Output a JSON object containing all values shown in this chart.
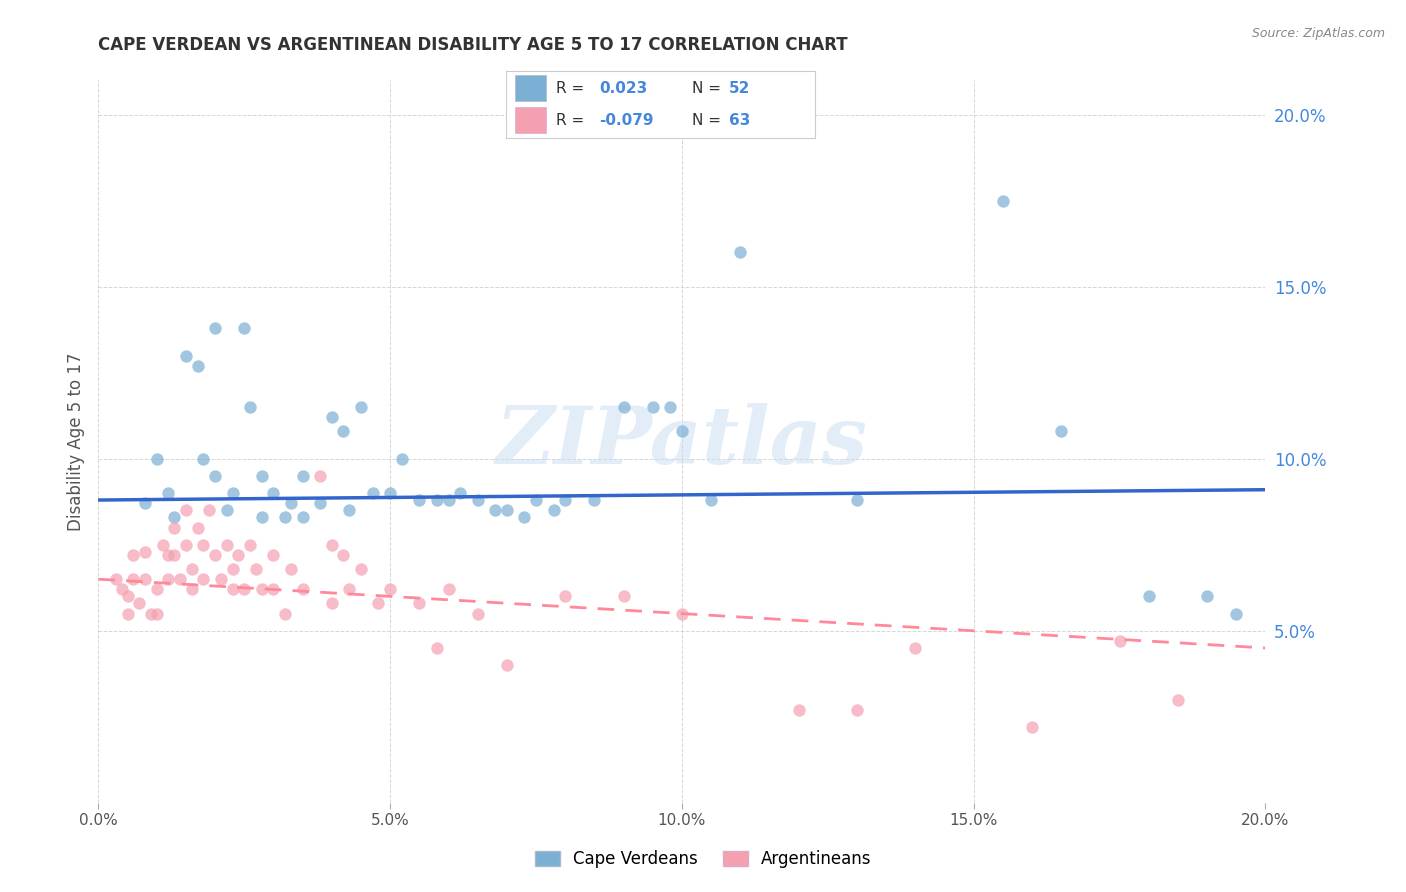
{
  "title": "CAPE VERDEAN VS ARGENTINEAN DISABILITY AGE 5 TO 17 CORRELATION CHART",
  "source": "Source: ZipAtlas.com",
  "ylabel": "Disability Age 5 to 17",
  "xlim": [
    0.0,
    0.2
  ],
  "ylim": [
    0.0,
    0.21
  ],
  "xticks": [
    0.0,
    0.05,
    0.1,
    0.15,
    0.2
  ],
  "xtick_labels": [
    "0.0%",
    "5.0%",
    "10.0%",
    "15.0%",
    "20.0%"
  ],
  "yticks": [
    0.05,
    0.1,
    0.15,
    0.2
  ],
  "ytick_labels": [
    "5.0%",
    "10.0%",
    "15.0%",
    "20.0%"
  ],
  "blue_color": "#7BAFD4",
  "pink_color": "#F4A0B0",
  "blue_line_color": "#3366CC",
  "pink_line_color": "#FF8899",
  "blue_r": "0.023",
  "blue_n": "52",
  "pink_r": "-0.079",
  "pink_n": "63",
  "watermark": "ZIPatlas",
  "blue_scatter_x": [
    0.008,
    0.01,
    0.012,
    0.013,
    0.015,
    0.017,
    0.018,
    0.02,
    0.02,
    0.022,
    0.023,
    0.025,
    0.026,
    0.028,
    0.028,
    0.03,
    0.032,
    0.033,
    0.035,
    0.035,
    0.038,
    0.04,
    0.042,
    0.043,
    0.045,
    0.047,
    0.05,
    0.052,
    0.055,
    0.058,
    0.06,
    0.062,
    0.065,
    0.068,
    0.07,
    0.073,
    0.075,
    0.078,
    0.08,
    0.085,
    0.09,
    0.095,
    0.098,
    0.1,
    0.105,
    0.11,
    0.13,
    0.155,
    0.165,
    0.18,
    0.19,
    0.195
  ],
  "blue_scatter_y": [
    0.087,
    0.1,
    0.09,
    0.083,
    0.13,
    0.127,
    0.1,
    0.138,
    0.095,
    0.085,
    0.09,
    0.138,
    0.115,
    0.095,
    0.083,
    0.09,
    0.083,
    0.087,
    0.095,
    0.083,
    0.087,
    0.112,
    0.108,
    0.085,
    0.115,
    0.09,
    0.09,
    0.1,
    0.088,
    0.088,
    0.088,
    0.09,
    0.088,
    0.085,
    0.085,
    0.083,
    0.088,
    0.085,
    0.088,
    0.088,
    0.115,
    0.115,
    0.115,
    0.108,
    0.088,
    0.16,
    0.088,
    0.175,
    0.108,
    0.06,
    0.06,
    0.055
  ],
  "pink_scatter_x": [
    0.003,
    0.004,
    0.005,
    0.005,
    0.006,
    0.006,
    0.007,
    0.008,
    0.008,
    0.009,
    0.01,
    0.01,
    0.011,
    0.012,
    0.012,
    0.013,
    0.013,
    0.014,
    0.015,
    0.015,
    0.016,
    0.016,
    0.017,
    0.018,
    0.018,
    0.019,
    0.02,
    0.021,
    0.022,
    0.023,
    0.023,
    0.024,
    0.025,
    0.026,
    0.027,
    0.028,
    0.03,
    0.03,
    0.032,
    0.033,
    0.035,
    0.038,
    0.04,
    0.04,
    0.042,
    0.043,
    0.045,
    0.048,
    0.05,
    0.055,
    0.058,
    0.06,
    0.065,
    0.07,
    0.08,
    0.09,
    0.1,
    0.12,
    0.13,
    0.14,
    0.16,
    0.175,
    0.185
  ],
  "pink_scatter_y": [
    0.065,
    0.062,
    0.06,
    0.055,
    0.072,
    0.065,
    0.058,
    0.073,
    0.065,
    0.055,
    0.062,
    0.055,
    0.075,
    0.072,
    0.065,
    0.08,
    0.072,
    0.065,
    0.085,
    0.075,
    0.068,
    0.062,
    0.08,
    0.075,
    0.065,
    0.085,
    0.072,
    0.065,
    0.075,
    0.068,
    0.062,
    0.072,
    0.062,
    0.075,
    0.068,
    0.062,
    0.072,
    0.062,
    0.055,
    0.068,
    0.062,
    0.095,
    0.075,
    0.058,
    0.072,
    0.062,
    0.068,
    0.058,
    0.062,
    0.058,
    0.045,
    0.062,
    0.055,
    0.04,
    0.06,
    0.06,
    0.055,
    0.027,
    0.027,
    0.045,
    0.022,
    0.047,
    0.03
  ],
  "blue_line_x": [
    0.0,
    0.2
  ],
  "blue_line_y": [
    0.088,
    0.091
  ],
  "pink_line_x": [
    0.0,
    0.2
  ],
  "pink_line_y": [
    0.065,
    0.045
  ],
  "background_color": "#ffffff",
  "grid_color": "#cccccc",
  "title_color": "#333333",
  "axis_label_color": "#555555",
  "right_axis_color": "#4488DD",
  "legend_box_color": "#eeeeee"
}
